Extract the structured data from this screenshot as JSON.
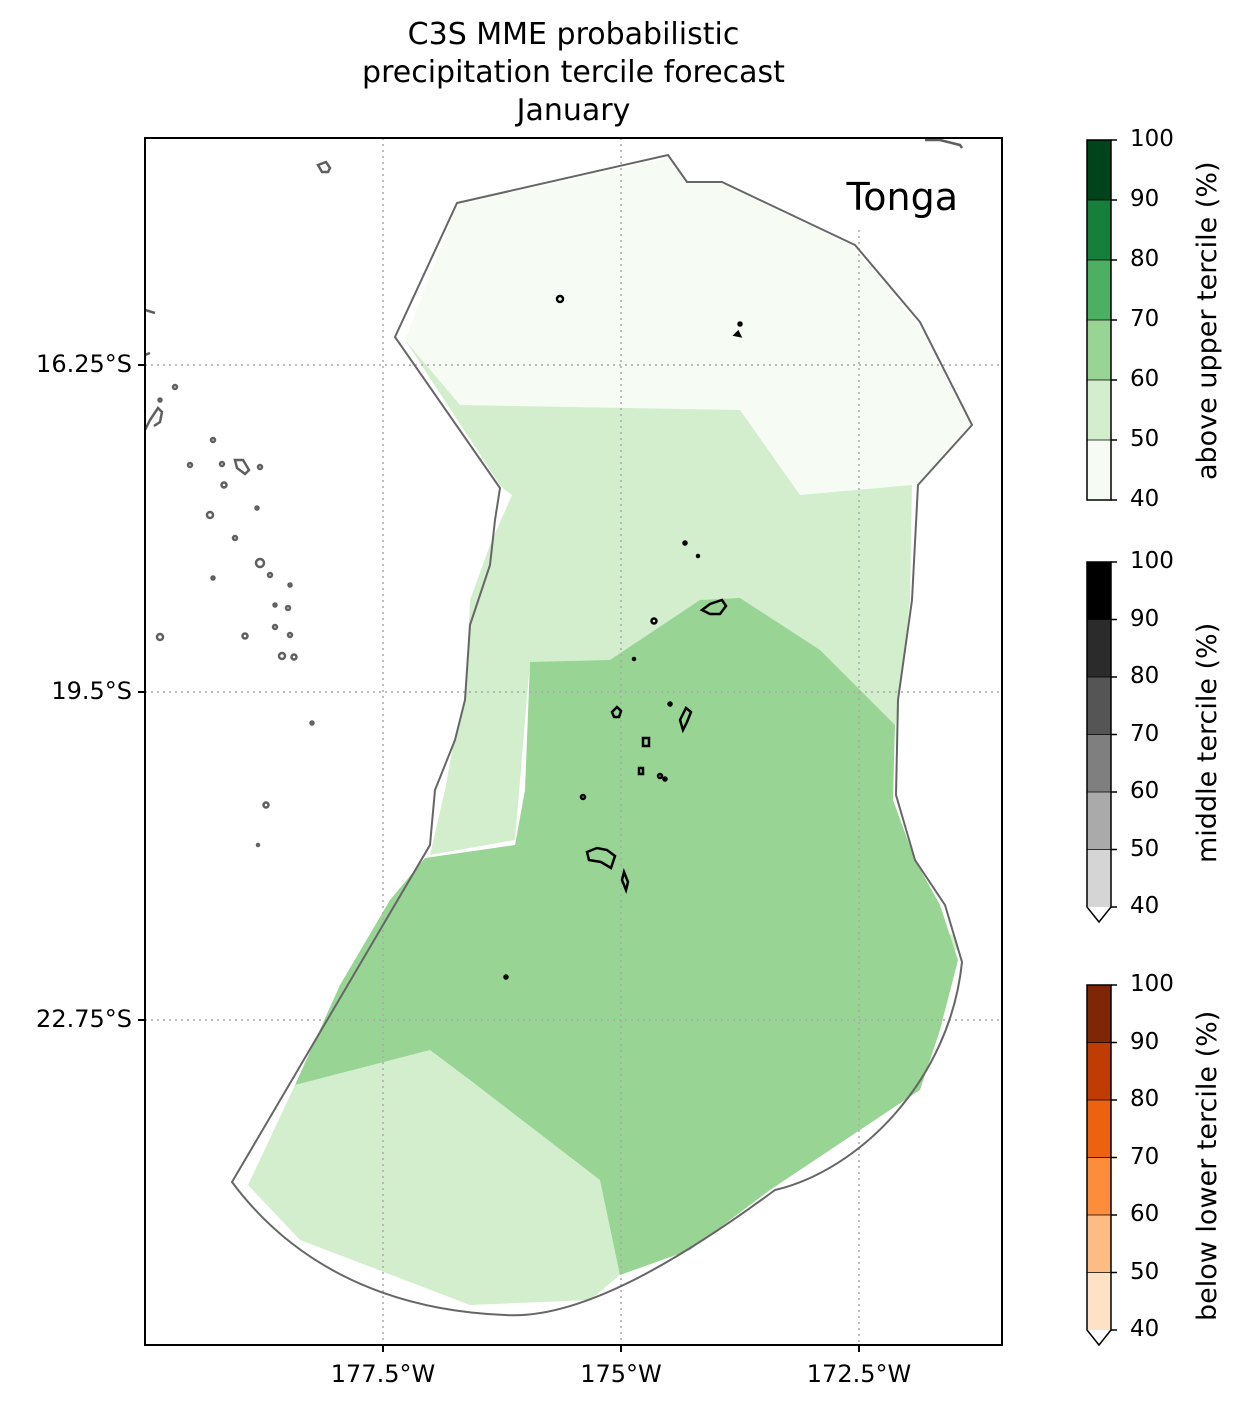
{
  "title": {
    "line1": "C3S MME probabilistic",
    "line2": "precipitation tercile forecast",
    "line3": "January"
  },
  "region_label": "Tonga",
  "y_ticks": [
    "16.25°S",
    "19.5°S",
    "22.75°S"
  ],
  "x_ticks": [
    "177.5°W",
    "175°W",
    "172.5°W"
  ],
  "colorbars": [
    {
      "label": "above upper tercile (%)",
      "ticks": [
        "100",
        "90",
        "80",
        "70",
        "60",
        "50",
        "40"
      ],
      "colors": [
        "#00441b",
        "#177f3c",
        "#4daf62",
        "#98d493",
        "#d3eecd",
        "#f6fcf4"
      ],
      "extend_arrow": false
    },
    {
      "label": "middle tercile (%)",
      "ticks": [
        "100",
        "90",
        "80",
        "70",
        "60",
        "50",
        "40"
      ],
      "colors": [
        "#000000",
        "#2b2b2b",
        "#555555",
        "#7f7f7f",
        "#aaaaaa",
        "#d5d5d5"
      ],
      "extend_arrow": true
    },
    {
      "label": "below lower tercile (%)",
      "ticks": [
        "100",
        "90",
        "80",
        "70",
        "60",
        "50",
        "40"
      ],
      "colors": [
        "#7f2704",
        "#bf3c02",
        "#ec620f",
        "#fd8c3b",
        "#fdbc84",
        "#fee2c6"
      ],
      "extend_arrow": true
    }
  ],
  "fill_colors": {
    "above_40_50": "#f6fcf4",
    "above_50_60": "#d3eecd",
    "above_60_70": "#98d493",
    "coastline": "#5f5f5f",
    "eez_outline": "#666666",
    "gridline": "#aaaaaa"
  }
}
